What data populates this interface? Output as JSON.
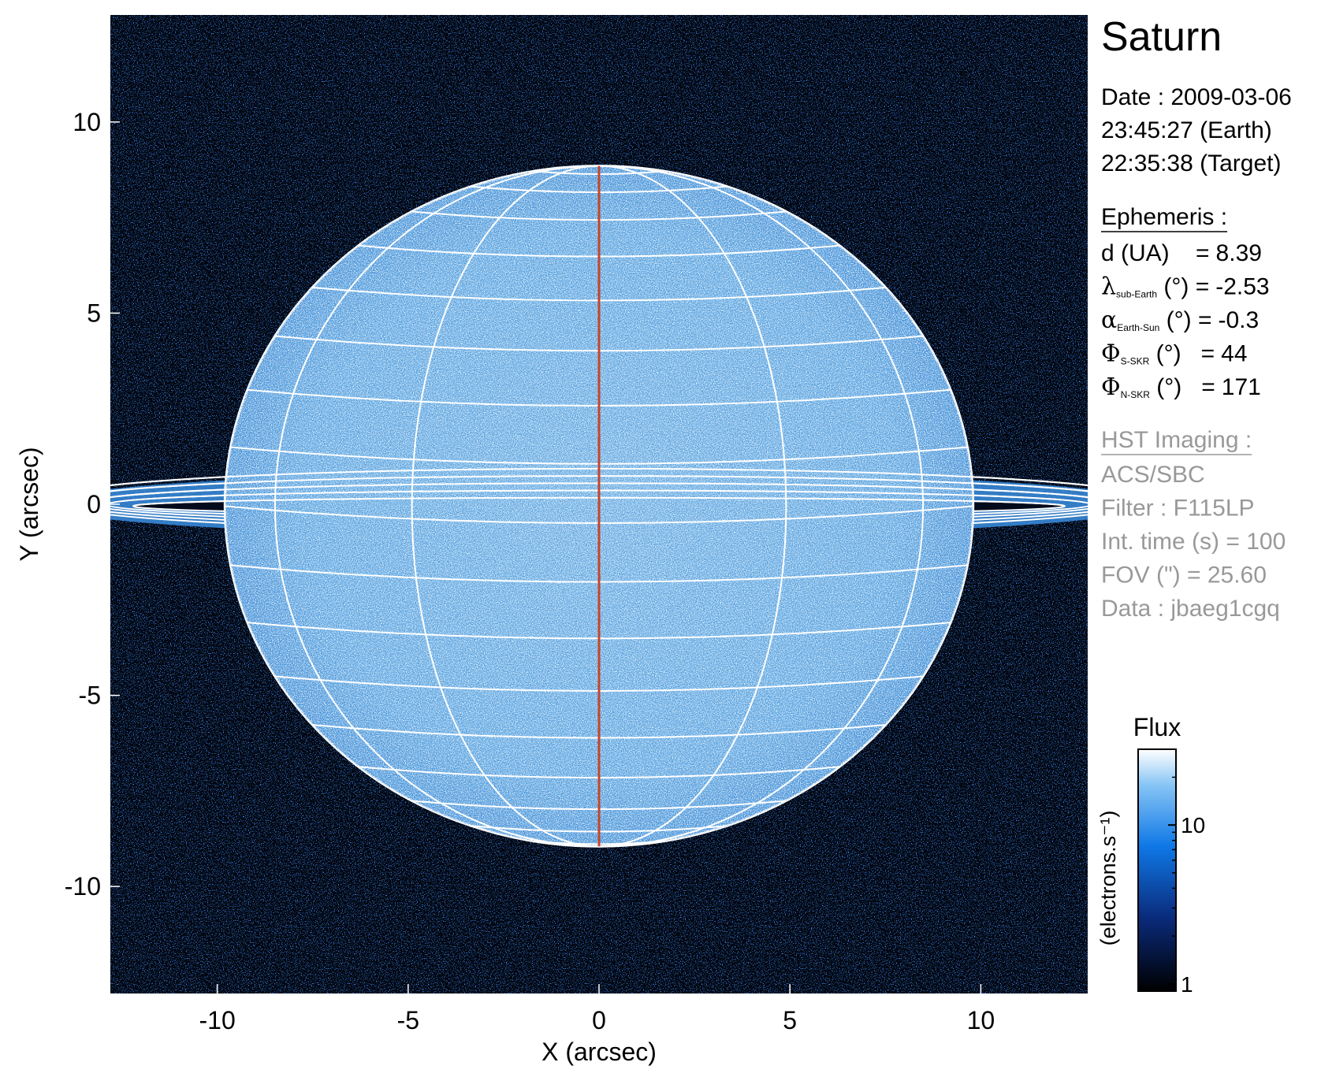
{
  "chart_data": {
    "type": "image",
    "xlabel": "X (arcsec)",
    "ylabel": "Y (arcsec)",
    "xlim": [
      -12.8,
      12.8
    ],
    "ylim": [
      -12.8,
      12.8
    ],
    "xticks": [
      -10,
      -5,
      0,
      5,
      10
    ],
    "yticks": [
      -10,
      -5,
      0,
      5,
      10
    ],
    "colorbar": {
      "title": "Flux",
      "label": "(electrons.s⁻¹)",
      "log": true,
      "clim": [
        0.9,
        30
      ],
      "ticks": [
        1,
        10
      ]
    }
  },
  "panel": {
    "title": "Saturn",
    "date": [
      "Date : 2009-03-06",
      "23:45:27 (Earth)",
      "22:35:38 (Target)"
    ],
    "ephemeris": {
      "heading": "Ephemeris :",
      "rows": [
        {
          "label": "d (UA)    =",
          "value": 8.39
        },
        {
          "symbol": "λ",
          "sub": "sub-Earth",
          "label": " (°) =",
          "value": -2.53
        },
        {
          "symbol": "α",
          "sub": "Earth-Sun",
          "label": " (°) =",
          "value": -0.3
        },
        {
          "symbol": "Φ",
          "sub": "S-SKR",
          "label": " (°)   =",
          "value": 44
        },
        {
          "symbol": "Φ",
          "sub": "N-SKR",
          "label": " (°)   =",
          "value": 171
        }
      ]
    },
    "imaging": {
      "heading": "HST Imaging :",
      "lines": [
        "ACS/SBC",
        "Filter : F115LP",
        "Int. time (s) = 100",
        "FOV (\") = 25.60",
        "Data : jbaeg1cgq"
      ]
    }
  }
}
